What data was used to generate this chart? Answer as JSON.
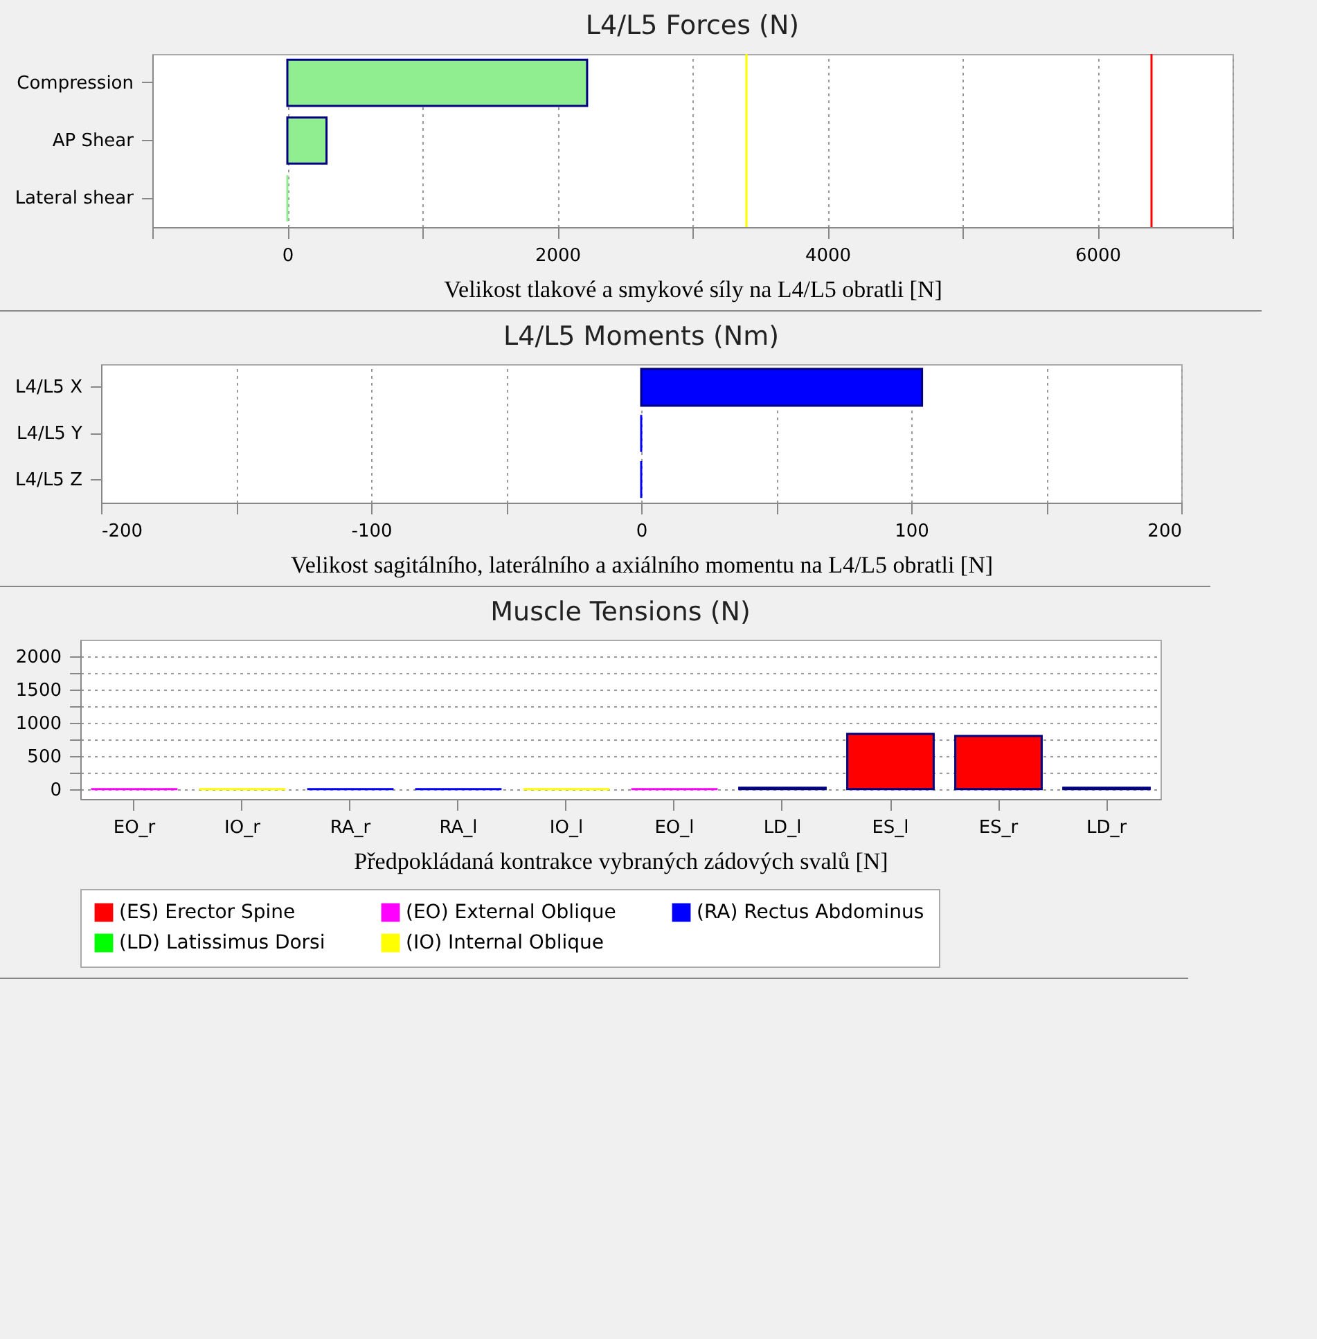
{
  "chart_data": [
    {
      "type": "bar",
      "title": "L4/L5 Forces (N)",
      "xlabel": "Velikost tlakové a smykové síly na L4/L5 obratli [N]",
      "orientation": "horizontal",
      "categories": [
        "Compression",
        "AP Shear",
        "Lateral shear"
      ],
      "values": [
        2220,
        290,
        0
      ],
      "color": "#90ee90",
      "xlim": [
        -1000,
        7000
      ],
      "xticks": [
        {
          "value": -1000,
          "label": null
        },
        0,
        {
          "value": 1000,
          "label": null
        },
        2000,
        {
          "value": 3000,
          "label": null
        },
        4000,
        {
          "value": 5000,
          "label": null
        },
        6000,
        {
          "value": 7000,
          "label": null
        }
      ],
      "grid": "x",
      "ref_lines": [
        {
          "axis": "x",
          "value": 3400,
          "color": "#ffff00"
        },
        {
          "axis": "x",
          "value": 6400,
          "color": "#ff0000"
        }
      ]
    },
    {
      "type": "bar",
      "title": "L4/L5 Moments (Nm)",
      "xlabel": "Velikost sagitálního, laterálního a axiálního momentu na L4/L5 obratli [N]",
      "orientation": "horizontal",
      "categories": [
        "L4/L5 X",
        "L4/L5 Y",
        "L4/L5 Z"
      ],
      "values": [
        104,
        0,
        0
      ],
      "color": "#0000ff",
      "xlim": [
        -200,
        200
      ],
      "xticks": [
        -200,
        {
          "value": -150,
          "label": null
        },
        -100,
        {
          "value": -50,
          "label": null
        },
        0,
        {
          "value": 50,
          "label": null
        },
        100,
        {
          "value": 150,
          "label": null
        },
        200
      ],
      "grid": "x"
    },
    {
      "type": "bar",
      "title": "Muscle Tensions (N)",
      "xlabel": "Předpokládaná kontrakce vybraných zádových svalů [N]",
      "categories": [
        "EO_r",
        "IO_r",
        "RA_r",
        "RA_l",
        "IO_l",
        "EO_l",
        "LD_l",
        "ES_l",
        "ES_r",
        "LD_r"
      ],
      "stacked": true,
      "ylim": [
        -150,
        2250
      ],
      "yticks": [
        0,
        {
          "value": 250,
          "label": null
        },
        500,
        {
          "value": 750,
          "label": null
        },
        1000,
        {
          "value": 1250,
          "label": null
        },
        1500,
        {
          "value": 1750,
          "label": null
        },
        2000
      ],
      "grid": "y",
      "legend": "bottom",
      "series": [
        {
          "name": "(ES) Erector Spine",
          "color": "#ff0000",
          "values": [
            null,
            null,
            null,
            null,
            null,
            null,
            null,
            830,
            800,
            null
          ]
        },
        {
          "name": "(EO) External Oblique",
          "color": "#ff00ff",
          "values": [
            0,
            null,
            null,
            null,
            null,
            0,
            null,
            null,
            null,
            null
          ]
        },
        {
          "name": "(RA) Rectus Abdominus",
          "color": "#0000ff",
          "values": [
            null,
            null,
            0,
            0,
            null,
            null,
            null,
            null,
            null,
            null
          ]
        },
        {
          "name": "(LD) Latissimus Dorsi",
          "color": "#00ff00",
          "values": [
            null,
            null,
            null,
            null,
            null,
            null,
            20,
            null,
            null,
            20
          ]
        },
        {
          "name": "(IO) Internal Oblique",
          "color": "#ffff00",
          "values": [
            null,
            0,
            null,
            null,
            0,
            null,
            null,
            null,
            null,
            null
          ]
        }
      ]
    }
  ]
}
